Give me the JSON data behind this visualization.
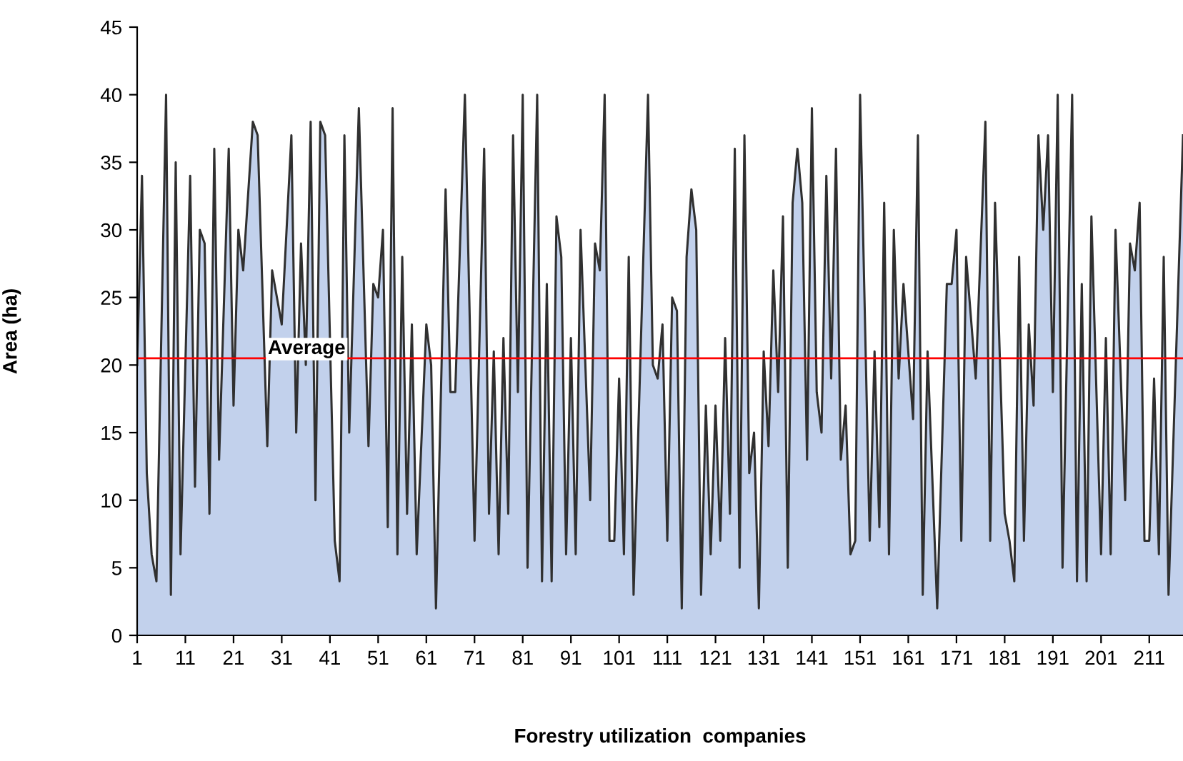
{
  "chart_data": {
    "type": "area",
    "xlabel": "Forestry utilization  companies",
    "ylabel": "Area (ha)",
    "xlim": [
      1,
      218
    ],
    "xticks": [
      1,
      11,
      21,
      31,
      41,
      51,
      61,
      71,
      81,
      91,
      101,
      111,
      121,
      131,
      141,
      151,
      161,
      171,
      181,
      191,
      201,
      211
    ],
    "ylim": [
      0,
      45
    ],
    "yticks": [
      0,
      5,
      10,
      15,
      20,
      25,
      30,
      35,
      40,
      45
    ],
    "grid": false,
    "legend": false,
    "series": [
      {
        "color": "#c2d1ec",
        "x": [
          1,
          2,
          3,
          4,
          5,
          7,
          8,
          9,
          10,
          12,
          13,
          14,
          15,
          16,
          17,
          18,
          20,
          21,
          22,
          23,
          25,
          26,
          28,
          29,
          31,
          33,
          34,
          35,
          36,
          37,
          38,
          39,
          40,
          42,
          43,
          44,
          45,
          47,
          49,
          50,
          51,
          52,
          53,
          54,
          55,
          56,
          57,
          58,
          59,
          61,
          62,
          63,
          65,
          66,
          67,
          69,
          71,
          73,
          74,
          75,
          76,
          77,
          78,
          79,
          80,
          81,
          82,
          84,
          85,
          86,
          87,
          88,
          89,
          90,
          91,
          92,
          93,
          95,
          96,
          97,
          98,
          99,
          100,
          101,
          102,
          103,
          104,
          107,
          108,
          109,
          110,
          111,
          112,
          113,
          114,
          115,
          116,
          117,
          118,
          119,
          120,
          121,
          122,
          123,
          124,
          125,
          126,
          127,
          128,
          129,
          130,
          131,
          132,
          133,
          134,
          135,
          136,
          137,
          138,
          139,
          140,
          141,
          142,
          143,
          144,
          145,
          146,
          147,
          148,
          149,
          150,
          151,
          153,
          154,
          155,
          156,
          157,
          158,
          159,
          160,
          162,
          163,
          164,
          165,
          167,
          169,
          170,
          171,
          172,
          173,
          175,
          177,
          178,
          179,
          181,
          182,
          183,
          184,
          185,
          186,
          187,
          188,
          189,
          190,
          191,
          192,
          193,
          195,
          196,
          197,
          198,
          199,
          201,
          202,
          203,
          204,
          206,
          207,
          208,
          209,
          210,
          211,
          212,
          213,
          214,
          215,
          218
        ],
        "values": [
          20,
          34,
          12,
          6,
          4,
          40,
          3,
          35,
          6,
          34,
          11,
          30,
          29,
          9,
          36,
          13,
          36,
          17,
          30,
          27,
          38,
          37,
          14,
          27,
          23,
          37,
          15,
          29,
          20,
          38,
          10,
          38,
          37,
          7,
          4,
          37,
          15,
          39,
          14,
          26,
          25,
          30,
          8,
          39,
          6,
          28,
          9,
          23,
          6,
          23,
          20,
          2,
          33,
          18,
          18,
          40,
          7,
          36,
          9,
          21,
          6,
          22,
          9,
          37,
          18,
          40,
          5,
          40,
          4,
          26,
          4,
          31,
          28,
          6,
          22,
          6,
          30,
          10,
          29,
          27,
          40,
          7,
          7,
          19,
          6,
          28,
          3,
          40,
          20,
          19,
          23,
          7,
          25,
          24,
          2,
          28,
          33,
          30,
          3,
          17,
          6,
          17,
          7,
          22,
          9,
          36,
          5,
          37,
          12,
          15,
          2,
          21,
          14,
          27,
          18,
          31,
          5,
          32,
          36,
          32,
          13,
          39,
          18,
          15,
          34,
          19,
          36,
          13,
          17,
          6,
          7,
          40,
          7,
          21,
          8,
          32,
          6,
          30,
          19,
          26,
          16,
          37,
          3,
          21,
          2,
          26,
          26,
          30,
          7,
          28,
          19,
          38,
          7,
          32,
          9,
          7,
          4,
          28,
          7,
          23,
          17,
          37,
          30,
          37,
          18,
          40,
          5,
          40,
          4,
          26,
          4,
          31,
          6,
          22,
          6,
          30,
          10,
          29,
          27,
          32,
          7,
          7,
          19,
          6,
          28,
          3,
          37
        ]
      }
    ],
    "ref_lines": [
      {
        "axis": "y",
        "value": 20.5,
        "label": "Average",
        "color": "#ff0000",
        "line_style": "solid"
      }
    ]
  }
}
